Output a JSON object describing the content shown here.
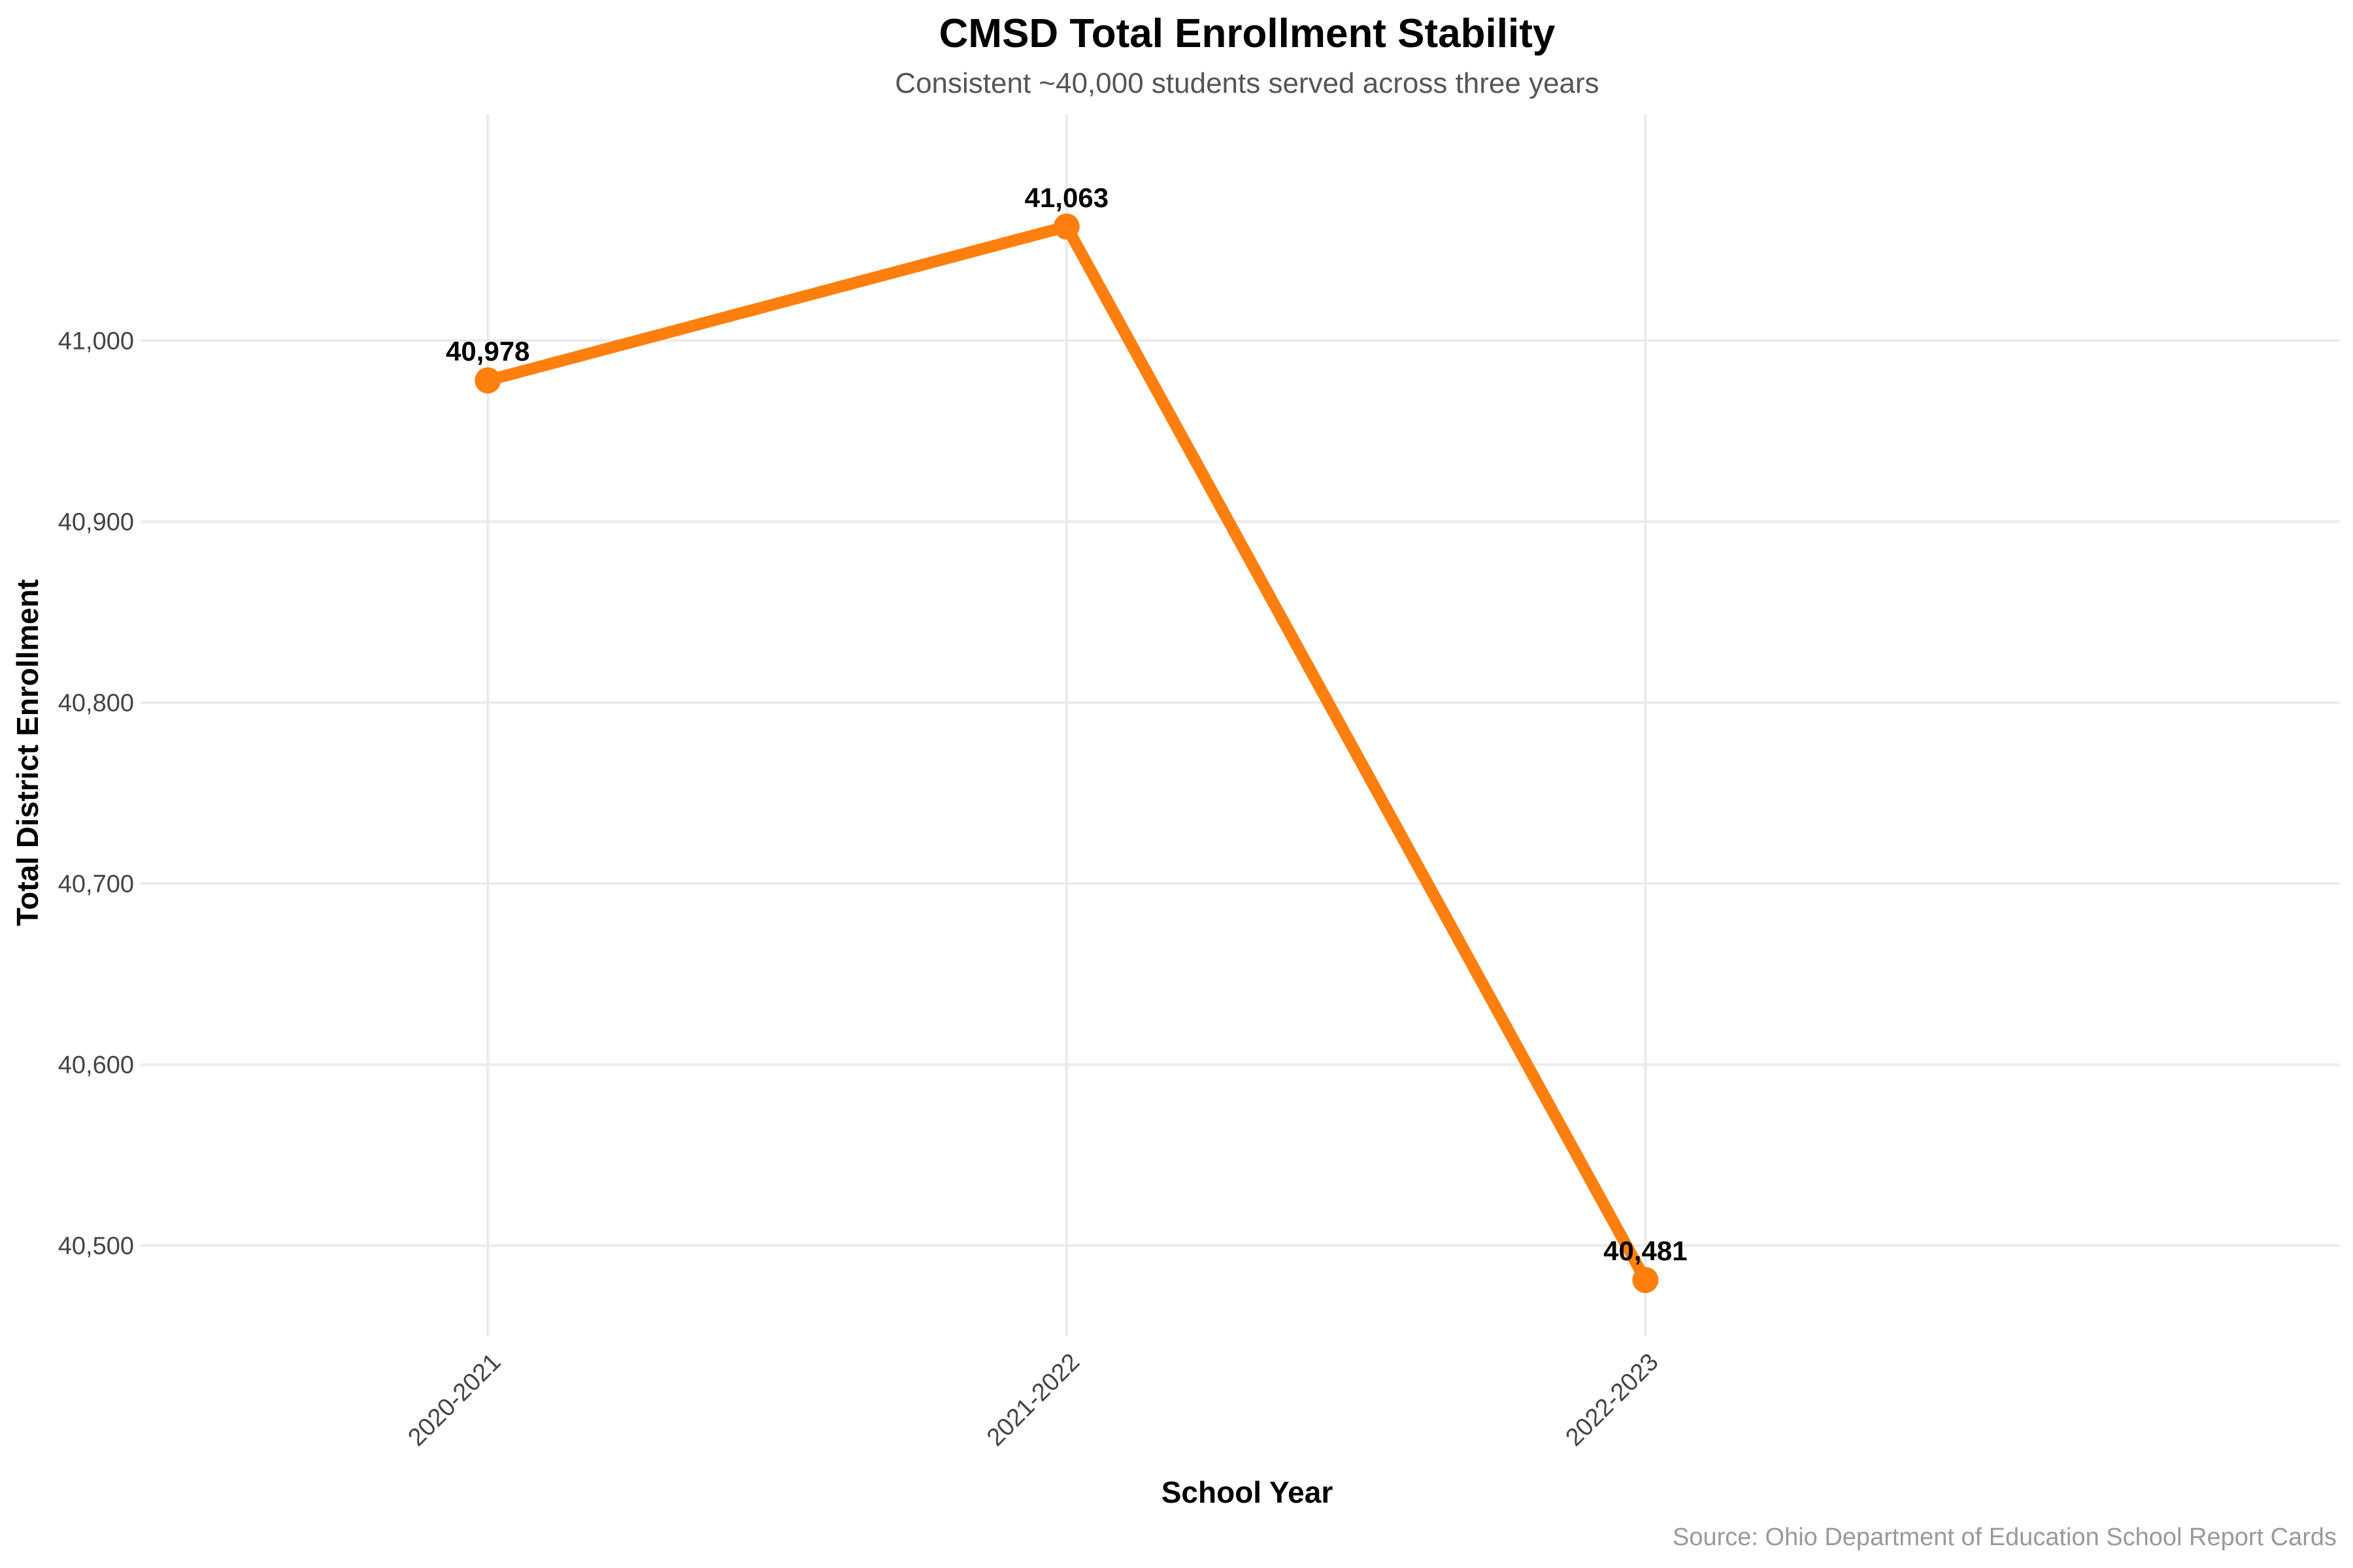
{
  "chart_data": {
    "type": "line",
    "title": "CMSD Total Enrollment Stability",
    "subtitle": "Consistent ~40,000 students served across three years",
    "xlabel": "School Year",
    "ylabel": "Total District Enrollment",
    "caption": "Source: Ohio Department of Education School Report Cards",
    "categories": [
      "2020-2021",
      "2021-2022",
      "2022-2023"
    ],
    "series": [
      {
        "values": [
          40978,
          41063,
          40481
        ],
        "labels": [
          "40,978",
          "41,063",
          "40,481"
        ],
        "color": "#ff7f0e"
      }
    ],
    "ylim": [
      40450,
      41125
    ],
    "yticks": [
      40500,
      40600,
      40700,
      40800,
      40900,
      41000
    ],
    "ytick_labels": [
      "40,500",
      "40,600",
      "40,700",
      "40,800",
      "40,900",
      "41,000"
    ],
    "grid": true,
    "legend": "none"
  }
}
